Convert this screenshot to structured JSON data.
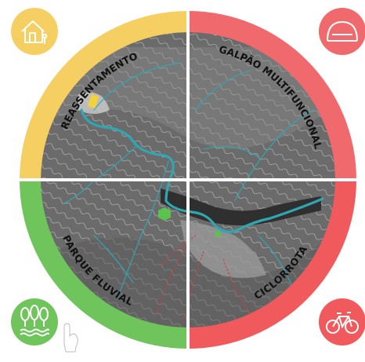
{
  "quadrants": [
    {
      "label": "REASSENTAMENTO",
      "color": "#f6cf63",
      "icon": "house-family-icon"
    },
    {
      "label": "GALPÃO MULTIFUNCIONAL",
      "color": "#f0696c",
      "icon": "warehouse-shed-icon"
    },
    {
      "label": "PARQUE FLUVIAL",
      "color": "#6fc45c",
      "icon": "trees-river-icon"
    },
    {
      "label": "CICLORROTA",
      "color": "#f15a5c",
      "icon": "bicycle-icon"
    }
  ],
  "colors": {
    "river": "#2fa7b2",
    "map_dark": "#3a3a3a",
    "map_mid": "#7c7c7c",
    "trail": "#d93a3a",
    "marker_yellow": "#f2d13a",
    "marker_green": "#5bc24e",
    "divider": "#ffffff"
  }
}
